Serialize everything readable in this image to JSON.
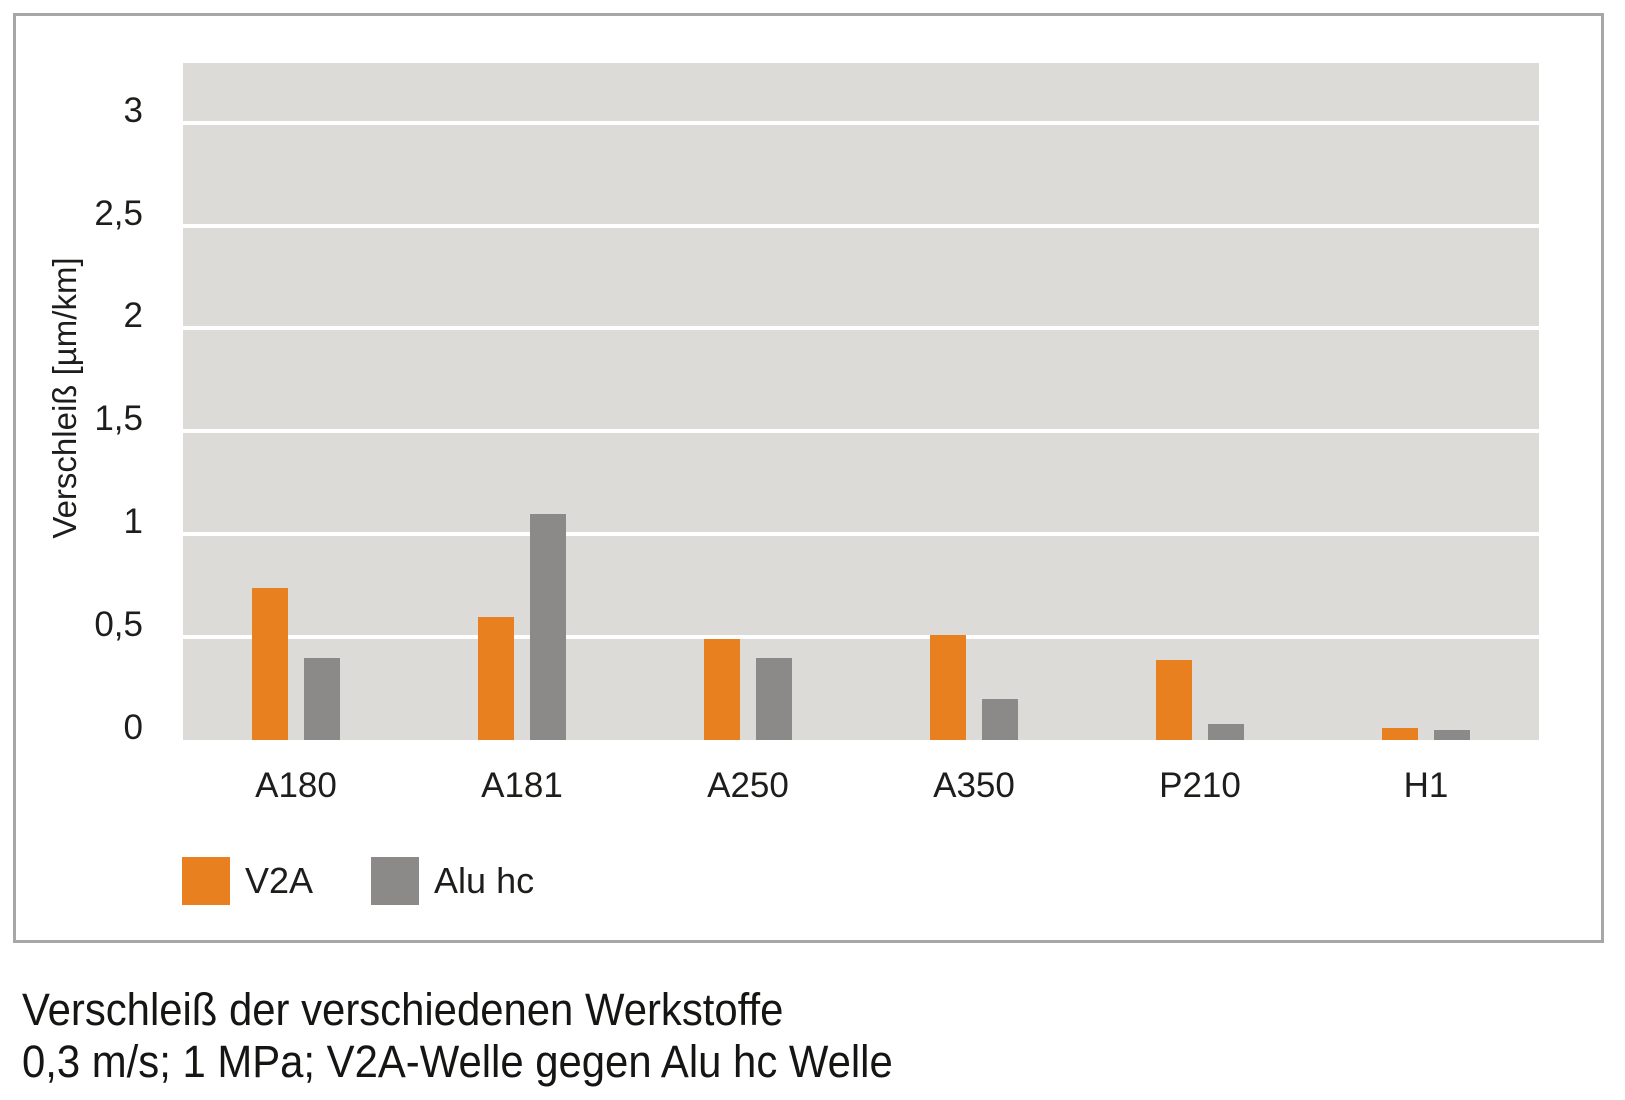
{
  "chart_data": {
    "type": "bar",
    "title": "",
    "categories": [
      "A180",
      "A181",
      "A250",
      "A350",
      "P210",
      "H1"
    ],
    "series": [
      {
        "name": "V2A",
        "color": "#e8801f",
        "values": [
          0.74,
          0.6,
          0.49,
          0.51,
          0.39,
          0.06
        ]
      },
      {
        "name": "Alu hc",
        "color": "#8b8a88",
        "values": [
          0.4,
          1.1,
          0.4,
          0.2,
          0.08,
          0.05
        ]
      }
    ],
    "ylabel": "Verschleiß [µm/km]",
    "yticks": [
      0,
      0.5,
      1,
      1.5,
      2,
      2.5,
      3
    ],
    "ytick_labels": [
      "0",
      "0,5",
      "1",
      "1,5",
      "2",
      "2,5",
      "3"
    ],
    "ylim": [
      0,
      3.29
    ],
    "grid": "horizontal-white-lines",
    "plot_background": "#dcdbd8",
    "legend_position": "bottom-left",
    "panel_border_color": "#a7a7a5"
  },
  "caption": {
    "line1": "Verschleiß der verschiedenen Werkstoffe",
    "line2": "0,3 m/s; 1 MPa; V2A-Welle gegen Alu hc Welle"
  }
}
